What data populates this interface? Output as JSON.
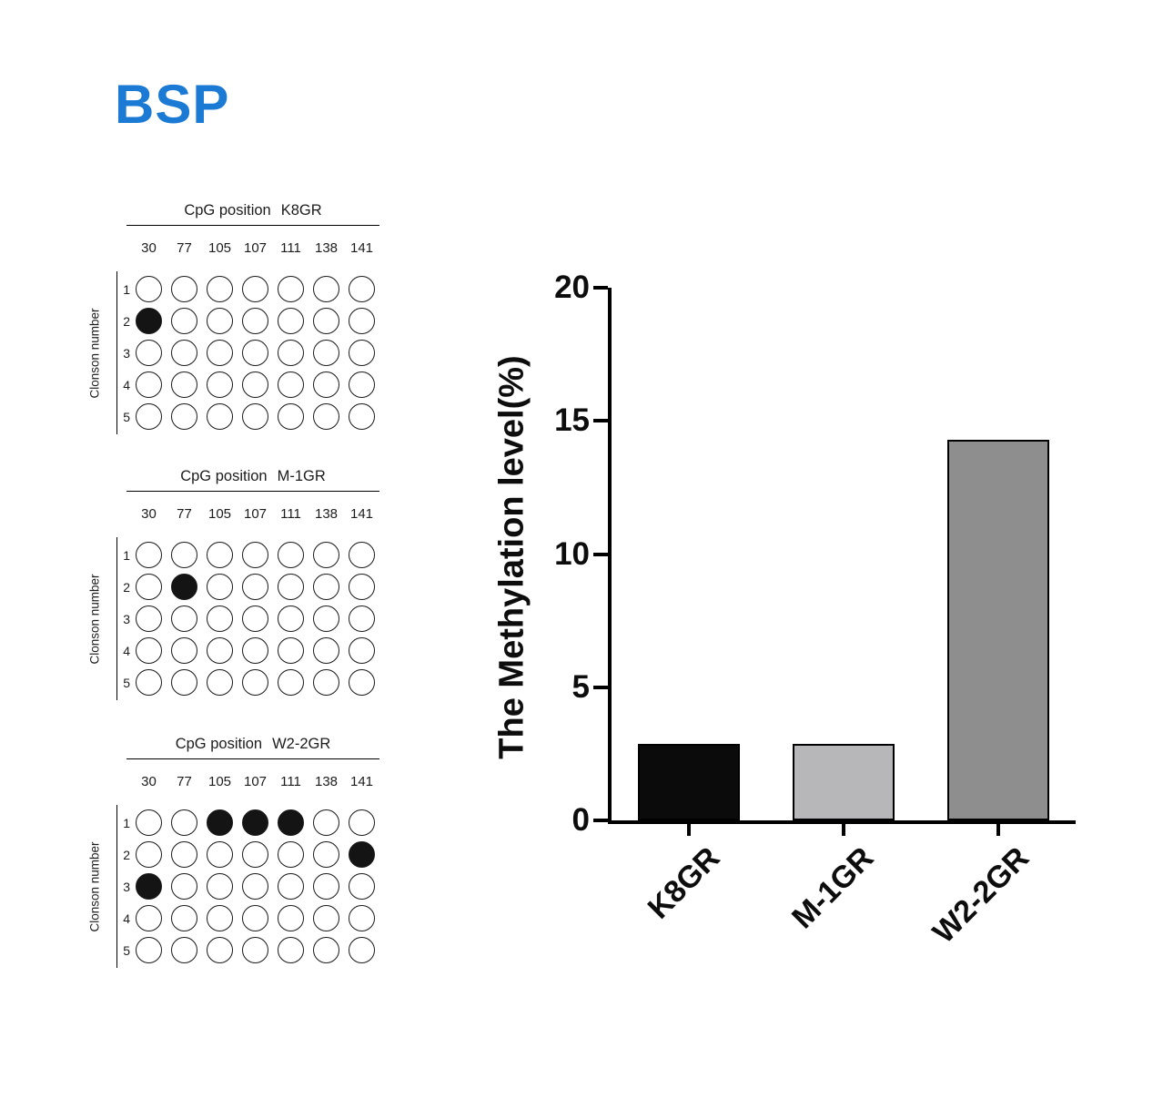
{
  "figure_title": "BSP",
  "figure_title_color": "#1b7ad3",
  "dot_panels": [
    {
      "title_prefix": "CpG position",
      "sample": "K8GR",
      "columns": [
        "30",
        "77",
        "105",
        "107",
        "111",
        "138",
        "141"
      ],
      "rows": [
        "1",
        "2",
        "3",
        "4",
        "5"
      ],
      "ylabel": "Clonson number",
      "filled_cells": [
        [
          1,
          0
        ]
      ]
    },
    {
      "title_prefix": "CpG position",
      "sample": "M-1GR",
      "columns": [
        "30",
        "77",
        "105",
        "107",
        "111",
        "138",
        "141"
      ],
      "rows": [
        "1",
        "2",
        "3",
        "4",
        "5"
      ],
      "ylabel": "Clonson number",
      "filled_cells": [
        [
          1,
          1
        ]
      ]
    },
    {
      "title_prefix": "CpG position",
      "sample": "W2-2GR",
      "columns": [
        "30",
        "77",
        "105",
        "107",
        "111",
        "138",
        "141"
      ],
      "rows": [
        "1",
        "2",
        "3",
        "4",
        "5"
      ],
      "ylabel": "Clonson number",
      "filled_cells": [
        [
          0,
          2
        ],
        [
          0,
          3
        ],
        [
          0,
          4
        ],
        [
          1,
          6
        ],
        [
          2,
          0
        ]
      ]
    }
  ],
  "chart_data": {
    "type": "bar",
    "categories": [
      "K8GR",
      "M-1GR",
      "W2-2GR"
    ],
    "values": [
      2.86,
      2.86,
      14.29
    ],
    "bar_colors": [
      "#0b0b0b",
      "#b7b7ba",
      "#8e8e8e"
    ],
    "bar_outline_color": "#000000",
    "title": "",
    "xlabel": "",
    "ylabel": "The Methylation level(%)",
    "ylim": [
      0,
      20
    ],
    "yticks": [
      0,
      5,
      10,
      15,
      20
    ],
    "grid": false,
    "legend": false
  }
}
